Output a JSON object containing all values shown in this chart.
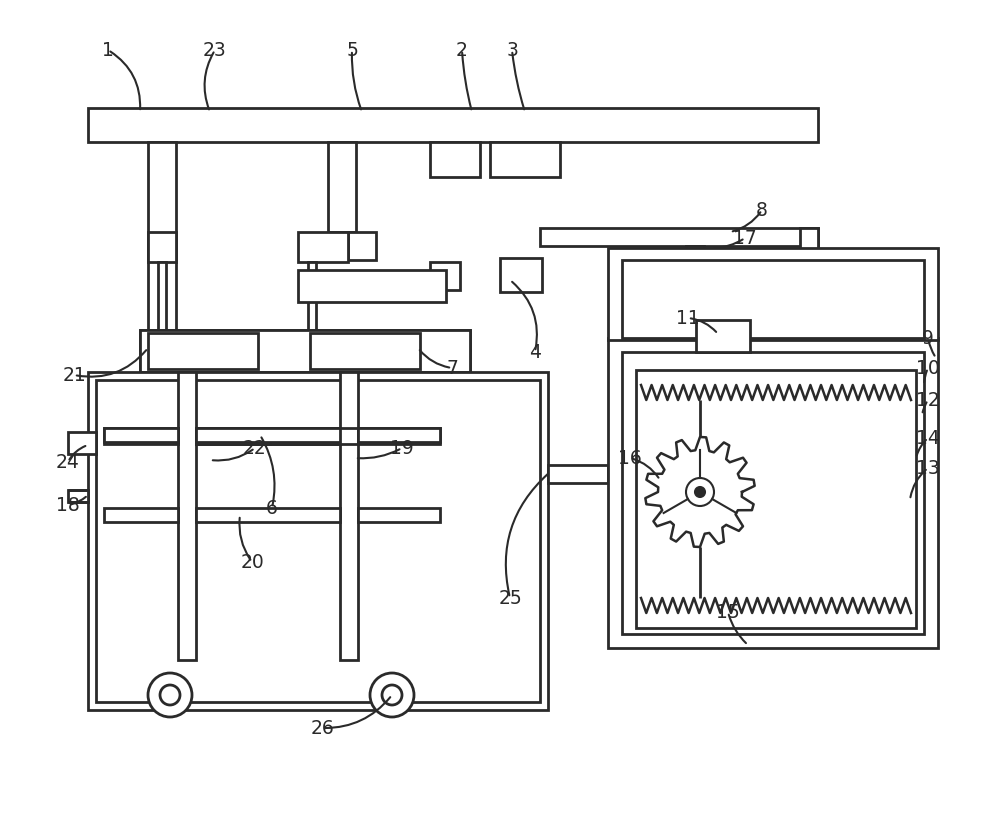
{
  "bg": "#ffffff",
  "lc": "#2a2a2a",
  "lw": 2.0,
  "lw_thin": 1.5,
  "figsize": [
    10.0,
    8.21
  ],
  "dpi": 100
}
